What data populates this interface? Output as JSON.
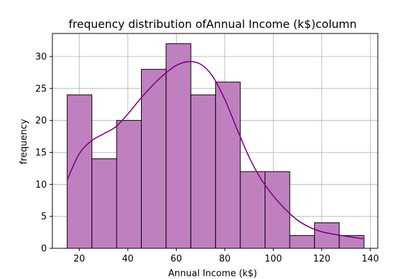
{
  "chart_data": {
    "type": "bar",
    "title": "frequency distribution ofAnnual Income (k$)column",
    "xlabel": "Annual Income (k$)",
    "ylabel": "frequency",
    "xlim": [
      8.9,
      143.1
    ],
    "ylim": [
      0,
      33.6
    ],
    "grid": true,
    "bar_color": "#bf80bf",
    "bar_edge_color": "#000000",
    "kde_color": "#800080",
    "bins": [
      {
        "x0": 15.0,
        "x1": 25.2,
        "count": 24
      },
      {
        "x0": 25.2,
        "x1": 35.4,
        "count": 14
      },
      {
        "x0": 35.4,
        "x1": 45.6,
        "count": 20
      },
      {
        "x0": 45.6,
        "x1": 55.8,
        "count": 28
      },
      {
        "x0": 55.8,
        "x1": 66.0,
        "count": 32
      },
      {
        "x0": 66.0,
        "x1": 76.2,
        "count": 24
      },
      {
        "x0": 76.2,
        "x1": 86.4,
        "count": 26
      },
      {
        "x0": 86.4,
        "x1": 96.6,
        "count": 12
      },
      {
        "x0": 96.6,
        "x1": 106.8,
        "count": 12
      },
      {
        "x0": 106.8,
        "x1": 117.0,
        "count": 2
      },
      {
        "x0": 117.0,
        "x1": 127.2,
        "count": 4
      },
      {
        "x0": 127.2,
        "x1": 137.4,
        "count": 2
      }
    ],
    "kde": {
      "x": [
        15,
        20,
        25,
        30,
        35,
        40,
        45,
        50,
        55,
        60,
        65,
        70,
        75,
        80,
        85,
        90,
        95,
        100,
        105,
        110,
        115,
        120,
        125,
        130,
        135,
        137
      ],
      "y": [
        10.7,
        14.8,
        16.8,
        17.9,
        19.0,
        21.0,
        23.3,
        25.4,
        27.2,
        28.6,
        29.2,
        28.8,
        26.9,
        23.3,
        18.7,
        14.3,
        10.8,
        8.2,
        6.1,
        4.4,
        3.3,
        2.6,
        2.2,
        1.9,
        1.6,
        1.5
      ]
    },
    "xticks": [
      20,
      40,
      60,
      80,
      100,
      120,
      140
    ],
    "yticks": [
      0,
      5,
      10,
      15,
      20,
      25,
      30
    ]
  }
}
